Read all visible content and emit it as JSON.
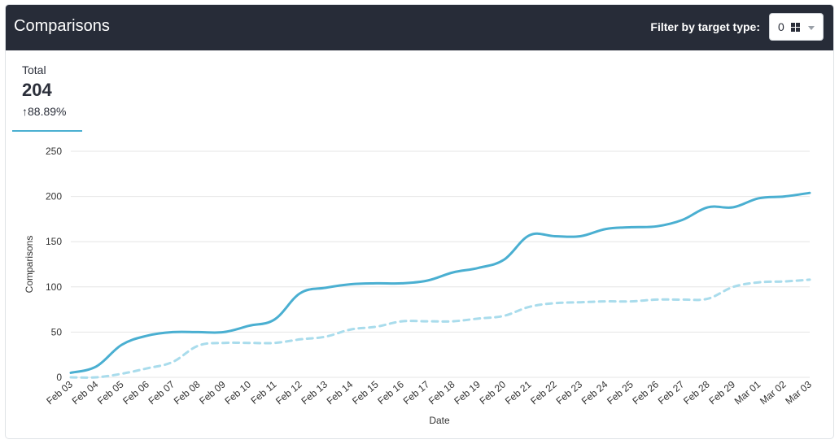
{
  "header": {
    "title": "Comparisons",
    "filter_label": "Filter by target type:",
    "filter_value": "0",
    "filter_icon": "grid-icon"
  },
  "summary": {
    "label": "Total",
    "value": "204",
    "change": "↑88.89%"
  },
  "colors": {
    "header_bg": "#272c38",
    "series_primary": "#4aafd1",
    "series_secondary": "#a9dcec"
  },
  "chart_data": {
    "type": "line",
    "title": "",
    "xlabel": "Date",
    "ylabel": "Comparisons",
    "ylim": [
      0,
      250
    ],
    "yticks": [
      0,
      50,
      100,
      150,
      200,
      250
    ],
    "grid": true,
    "categories": [
      "Feb 03",
      "Feb 04",
      "Feb 05",
      "Feb 06",
      "Feb 07",
      "Feb 08",
      "Feb 09",
      "Feb 10",
      "Feb 11",
      "Feb 12",
      "Feb 13",
      "Feb 14",
      "Feb 15",
      "Feb 16",
      "Feb 17",
      "Feb 18",
      "Feb 19",
      "Feb 20",
      "Feb 21",
      "Feb 22",
      "Feb 23",
      "Feb 24",
      "Feb 25",
      "Feb 26",
      "Feb 27",
      "Feb 28",
      "Feb 29",
      "Mar 01",
      "Mar 02",
      "Mar 03"
    ],
    "series": [
      {
        "style": "solid",
        "values": [
          5,
          12,
          36,
          46,
          50,
          50,
          50,
          57,
          64,
          93,
          99,
          103,
          104,
          104,
          107,
          116,
          121,
          130,
          157,
          156,
          156,
          164,
          166,
          167,
          174,
          188,
          188,
          198,
          200,
          204
        ]
      },
      {
        "style": "dashed",
        "values": [
          0,
          0,
          4,
          10,
          17,
          35,
          38,
          38,
          38,
          42,
          45,
          53,
          56,
          62,
          62,
          62,
          65,
          68,
          78,
          82,
          83,
          84,
          84,
          86,
          86,
          87,
          100,
          105,
          106,
          108
        ]
      }
    ]
  }
}
